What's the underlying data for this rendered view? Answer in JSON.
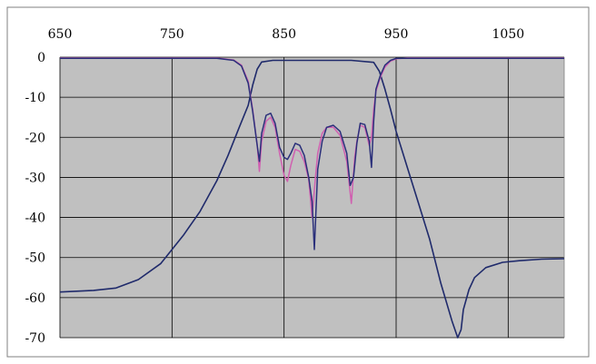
{
  "chart_data": {
    "type": "line",
    "title": "",
    "xlabel": "",
    "ylabel": "",
    "xlim": [
      650,
      1100
    ],
    "ylim": [
      -70,
      0
    ],
    "x_ticks": [
      650,
      750,
      850,
      950,
      1050
    ],
    "x_tick_labels": [
      "650",
      "750",
      "850",
      "950",
      "1050"
    ],
    "y_ticks": [
      0,
      -10,
      -20,
      -30,
      -40,
      -50,
      -60,
      -70
    ],
    "y_tick_labels": [
      "0",
      "-10",
      "-20",
      "-30",
      "-40",
      "-50",
      "-60",
      "-70"
    ],
    "grid": "vertical and horizontal",
    "legend": "none",
    "colors": {
      "plot_bg": "#c0c0c0",
      "grid": "#000000",
      "transmission": "#1f2a6b",
      "reflection_simulated": "#d060b0",
      "reflection_measured": "#2a2f7a"
    },
    "series": [
      {
        "key": "transmission",
        "x": [
          650,
          680,
          700,
          720,
          740,
          760,
          775,
          790,
          800,
          810,
          818,
          822,
          826,
          830,
          840,
          850,
          870,
          890,
          910,
          930,
          935,
          940,
          945,
          950,
          960,
          970,
          980,
          990,
          1000,
          1005,
          1008,
          1010,
          1015,
          1020,
          1030,
          1045,
          1060,
          1080,
          1100
        ],
        "y": [
          -58.6,
          -58.2,
          -57.6,
          -55.5,
          -51.5,
          -44.5,
          -38.5,
          -30.8,
          -24.5,
          -17.5,
          -12,
          -7,
          -3,
          -1.2,
          -0.8,
          -0.8,
          -0.8,
          -0.8,
          -0.8,
          -1.3,
          -3.5,
          -8,
          -13,
          -18.5,
          -27.5,
          -36.5,
          -45.5,
          -56.5,
          -66,
          -70,
          -68,
          -63,
          -58,
          -55,
          -52.5,
          -51.2,
          -50.8,
          -50.4,
          -50.3
        ]
      },
      {
        "key": "reflection_simulated",
        "x": [
          650,
          790,
          805,
          812,
          818,
          822,
          826,
          828,
          830,
          834,
          838,
          842,
          846,
          850,
          853,
          856,
          860,
          864,
          868,
          872,
          875,
          878,
          880,
          884,
          888,
          894,
          900,
          906,
          910,
          913,
          915,
          918,
          922,
          926,
          928,
          930,
          932,
          936,
          940,
          945,
          950,
          960,
          1100
        ],
        "y": [
          -0.2,
          -0.2,
          -0.7,
          -2,
          -6,
          -13,
          -22,
          -28.5,
          -21,
          -16,
          -15,
          -17.5,
          -24,
          -29.5,
          -31,
          -27,
          -23,
          -23.5,
          -26,
          -30.5,
          -40,
          -30,
          -24,
          -19,
          -17.5,
          -17.5,
          -19.5,
          -26,
          -36.5,
          -25,
          -21,
          -17,
          -17.5,
          -22,
          -20,
          -13,
          -8.5,
          -5,
          -2.5,
          -1,
          -0.4,
          -0.2,
          -0.2
        ]
      },
      {
        "key": "reflection_measured",
        "x": [
          650,
          790,
          805,
          812,
          818,
          822,
          826,
          828,
          830,
          834,
          838,
          842,
          846,
          850,
          853,
          856,
          860,
          864,
          868,
          872,
          875,
          877,
          880,
          884,
          888,
          894,
          900,
          906,
          909,
          912,
          915,
          918,
          922,
          926,
          928,
          930,
          932,
          936,
          940,
          945,
          950,
          960,
          1100
        ],
        "y": [
          -0.3,
          -0.3,
          -0.8,
          -2.2,
          -6.5,
          -13.5,
          -22,
          -26,
          -19,
          -14.5,
          -14,
          -16.5,
          -22.5,
          -25,
          -25.5,
          -24,
          -21.5,
          -22,
          -24.5,
          -30,
          -36,
          -48,
          -28,
          -21,
          -17.5,
          -17,
          -18.5,
          -24,
          -32,
          -30,
          -21.5,
          -16.5,
          -16.8,
          -21,
          -27.5,
          -16,
          -8,
          -4.5,
          -2,
          -0.8,
          -0.3,
          -0.3,
          -0.3
        ]
      }
    ]
  }
}
